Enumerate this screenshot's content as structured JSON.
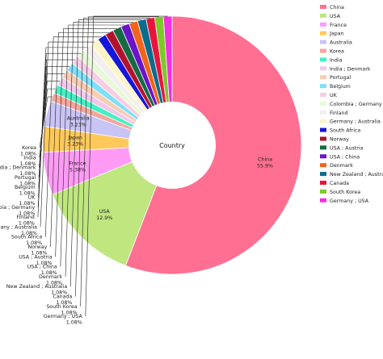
{
  "chart_data": {
    "type": "pie",
    "donut": true,
    "center_label": "Country",
    "legend_position": "right",
    "slices": [
      {
        "label": "China",
        "percent": 55.9,
        "pct_text": "55.9%",
        "color": "#ff6f91"
      },
      {
        "label": "USA",
        "percent": 12.9,
        "pct_text": "12.9%",
        "color": "#bfe67f"
      },
      {
        "label": "France",
        "percent": 5.38,
        "pct_text": "5.38%",
        "color": "#ff9bf5"
      },
      {
        "label": "Japan",
        "percent": 3.23,
        "pct_text": "3.23%",
        "color": "#ffc95a"
      },
      {
        "label": "Australia",
        "percent": 3.23,
        "pct_text": "3.23%",
        "color": "#c8c4f5"
      },
      {
        "label": "Korea",
        "percent": 1.08,
        "pct_text": "1.08%",
        "color": "#f4a79b"
      },
      {
        "label": "India",
        "percent": 1.08,
        "pct_text": "1.08%",
        "color": "#44f0c4"
      },
      {
        "label": "India ; Denmark",
        "percent": 1.08,
        "pct_text": "1.08%",
        "color": "#f0c8ea"
      },
      {
        "label": "Portugal",
        "percent": 1.08,
        "pct_text": "1.08%",
        "color": "#f9ccb4"
      },
      {
        "label": "Belgium",
        "percent": 1.08,
        "pct_text": "1.08%",
        "color": "#7fe0f8"
      },
      {
        "label": "UK",
        "percent": 1.08,
        "pct_text": "1.08%",
        "color": "#f8cce4"
      },
      {
        "label": "Colombia ; Germany",
        "percent": 1.08,
        "pct_text": "1.08%",
        "color": "#e8f8d8"
      },
      {
        "label": "Finland",
        "percent": 1.08,
        "pct_text": "1.08%",
        "color": "#f3eef0"
      },
      {
        "label": "Germany ; Australia",
        "percent": 1.08,
        "pct_text": "1.08%",
        "color": "#fff4c8"
      },
      {
        "label": "South Africa",
        "percent": 1.08,
        "pct_text": "1.08%",
        "color": "#1616d8"
      },
      {
        "label": "Norway",
        "percent": 1.08,
        "pct_text": "1.08%",
        "color": "#b3122c"
      },
      {
        "label": "USA ; Austria",
        "percent": 1.08,
        "pct_text": "1.08%",
        "color": "#146b43"
      },
      {
        "label": "USA ; China",
        "percent": 1.08,
        "pct_text": "1.08%",
        "color": "#6a13c8"
      },
      {
        "label": "Denmark",
        "percent": 1.08,
        "pct_text": "1.08%",
        "color": "#f0641c"
      },
      {
        "label": "New Zealand ; Australia",
        "percent": 1.08,
        "pct_text": "1.08%",
        "color": "#0c6c8c"
      },
      {
        "label": "Canada",
        "percent": 1.08,
        "pct_text": "1.08%",
        "color": "#e8143c"
      },
      {
        "label": "South Korea",
        "percent": 1.08,
        "pct_text": "1.08%",
        "color": "#7ec828"
      },
      {
        "label": "Germany ; USA",
        "percent": 1.08,
        "pct_text": "1.08%",
        "color": "#f22ee0"
      }
    ]
  }
}
